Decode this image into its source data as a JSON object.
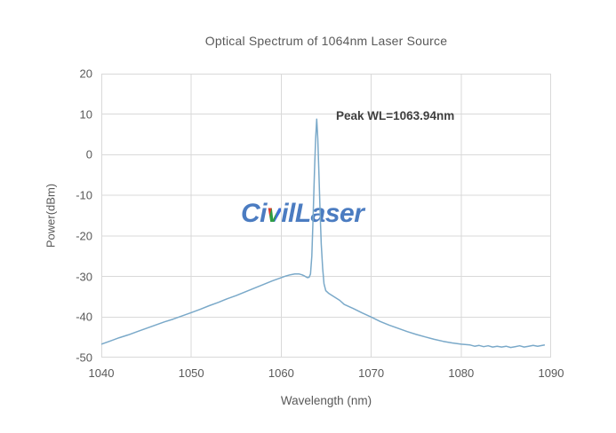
{
  "figure": {
    "watermark": {
      "pre": "Ci",
      "v": "v",
      "post": "ilLaser"
    }
  },
  "colors": {
    "line": "#7aa9c9",
    "grid": "#d9d9d9",
    "axis_text": "#595959",
    "annotation_text": "#3f3f3f",
    "watermark_blue": "#4b7cc1",
    "background": "#ffffff"
  },
  "chart_data": {
    "type": "line",
    "title": "Optical Spectrum of 1064nm Laser Source",
    "xlabel": "Wavelength (nm)",
    "ylabel": "Power(dBm)",
    "xlim": [
      1040,
      1090
    ],
    "ylim": [
      -50,
      20
    ],
    "x_ticks": [
      1040,
      1050,
      1060,
      1070,
      1080,
      1090
    ],
    "y_ticks": [
      20,
      10,
      0,
      -10,
      -20,
      -30,
      -40,
      -50
    ],
    "grid": true,
    "legend": "none",
    "annotation": {
      "text": "Peak WL=1063.94nm",
      "x_nm": 1066.1,
      "y_dbm": 9.0
    },
    "peak": {
      "wavelength_nm": 1063.94,
      "power_dbm": 8.8
    },
    "series": [
      {
        "name": "spectrum-trace",
        "points": [
          [
            1040,
            -46.7
          ],
          [
            1041,
            -45.9
          ],
          [
            1042,
            -45.1
          ],
          [
            1043,
            -44.4
          ],
          [
            1044,
            -43.6
          ],
          [
            1045,
            -42.8
          ],
          [
            1046,
            -42.0
          ],
          [
            1047,
            -41.2
          ],
          [
            1048,
            -40.5
          ],
          [
            1049,
            -39.7
          ],
          [
            1050,
            -38.9
          ],
          [
            1051,
            -38.1
          ],
          [
            1052,
            -37.2
          ],
          [
            1053,
            -36.4
          ],
          [
            1054,
            -35.5
          ],
          [
            1055,
            -34.7
          ],
          [
            1056,
            -33.8
          ],
          [
            1057,
            -32.9
          ],
          [
            1058,
            -32.0
          ],
          [
            1059,
            -31.1
          ],
          [
            1060,
            -30.3
          ],
          [
            1060.5,
            -29.9
          ],
          [
            1061,
            -29.6
          ],
          [
            1061.5,
            -29.4
          ],
          [
            1062,
            -29.4
          ],
          [
            1062.3,
            -29.6
          ],
          [
            1062.6,
            -29.9
          ],
          [
            1062.9,
            -30.3
          ],
          [
            1063.1,
            -30.2
          ],
          [
            1063.25,
            -29.4
          ],
          [
            1063.4,
            -25.0
          ],
          [
            1063.55,
            -15.0
          ],
          [
            1063.7,
            -4.0
          ],
          [
            1063.82,
            4.0
          ],
          [
            1063.94,
            8.8
          ],
          [
            1064.06,
            4.0
          ],
          [
            1064.18,
            -4.0
          ],
          [
            1064.32,
            -14.0
          ],
          [
            1064.45,
            -22.0
          ],
          [
            1064.6,
            -28.0
          ],
          [
            1064.75,
            -31.8
          ],
          [
            1064.95,
            -33.5
          ],
          [
            1065.3,
            -34.2
          ],
          [
            1065.8,
            -34.9
          ],
          [
            1066.5,
            -35.9
          ],
          [
            1067,
            -36.9
          ],
          [
            1068,
            -37.9
          ],
          [
            1069,
            -39.0
          ],
          [
            1070,
            -40.0
          ],
          [
            1071,
            -41.1
          ],
          [
            1072,
            -42.0
          ],
          [
            1073,
            -42.8
          ],
          [
            1074,
            -43.6
          ],
          [
            1075,
            -44.3
          ],
          [
            1076,
            -44.9
          ],
          [
            1077,
            -45.5
          ],
          [
            1078,
            -46.0
          ],
          [
            1079,
            -46.4
          ],
          [
            1080,
            -46.7
          ],
          [
            1081,
            -46.9
          ],
          [
            1081.5,
            -47.2
          ],
          [
            1082,
            -47.0
          ],
          [
            1082.5,
            -47.3
          ],
          [
            1083,
            -47.1
          ],
          [
            1083.5,
            -47.4
          ],
          [
            1084,
            -47.2
          ],
          [
            1084.5,
            -47.4
          ],
          [
            1085,
            -47.2
          ],
          [
            1085.5,
            -47.5
          ],
          [
            1086,
            -47.3
          ],
          [
            1086.5,
            -47.1
          ],
          [
            1087,
            -47.4
          ],
          [
            1087.5,
            -47.2
          ],
          [
            1088,
            -47.0
          ],
          [
            1088.5,
            -47.2
          ],
          [
            1089.3,
            -46.9
          ]
        ]
      }
    ]
  }
}
